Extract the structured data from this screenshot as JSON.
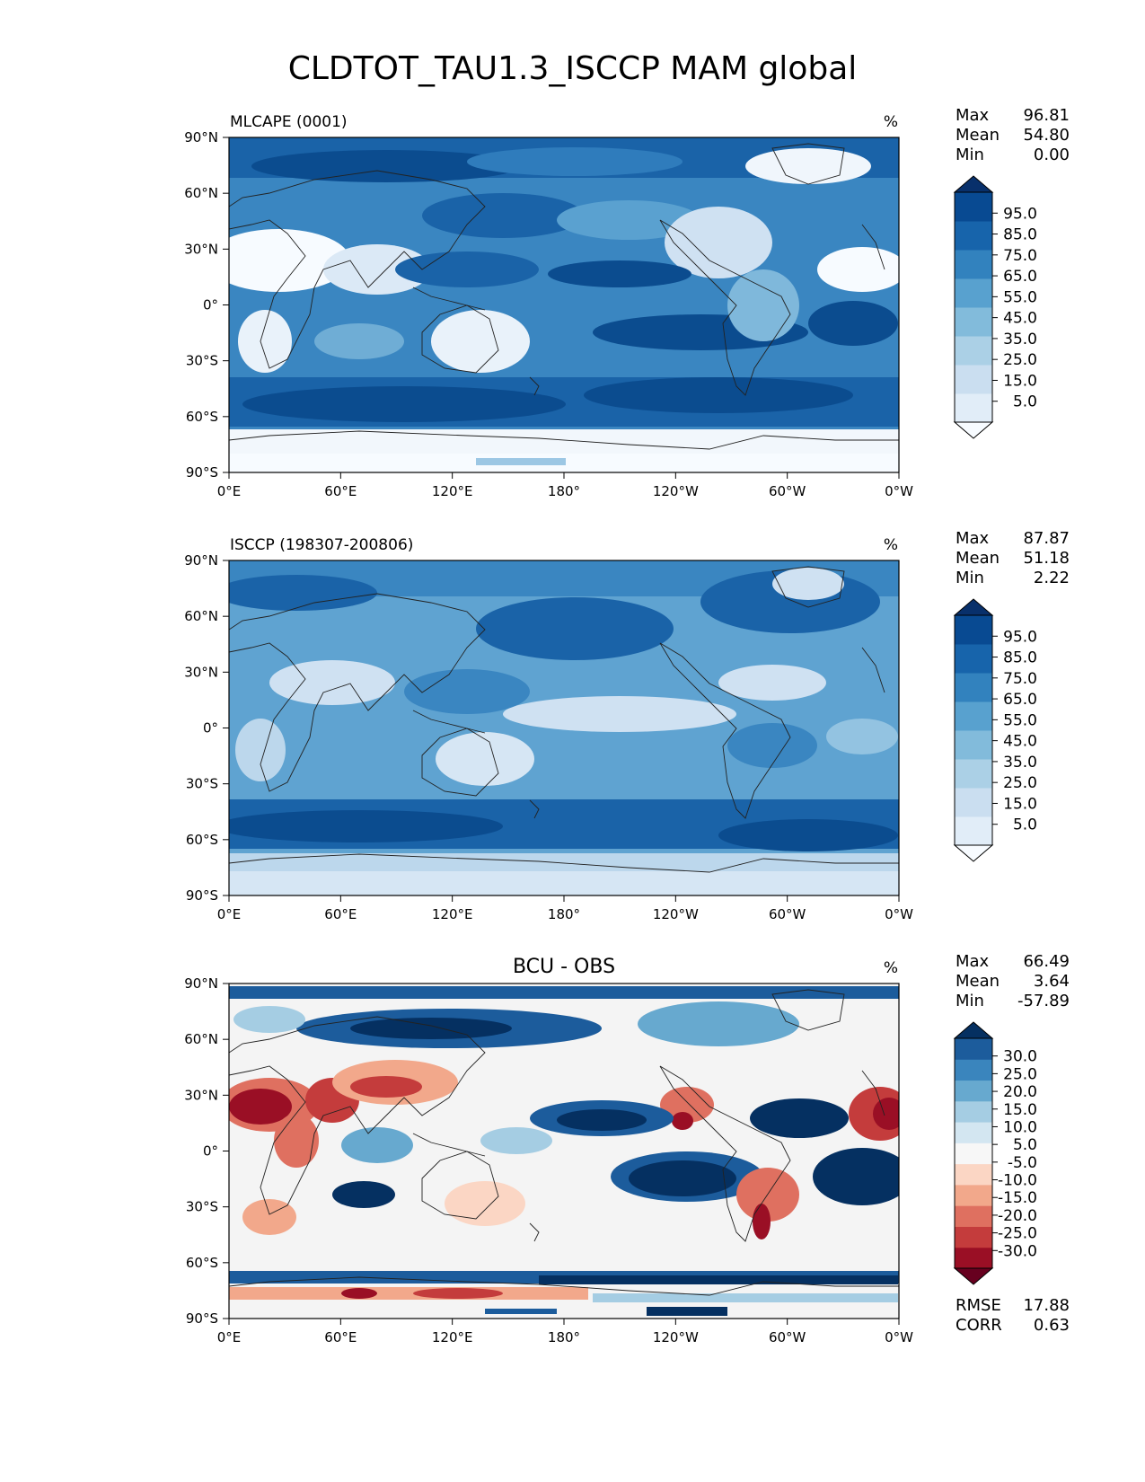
{
  "title": "CLDTOT_TAU1.3_ISCCP MAM global",
  "lat_ticks": [
    "90°N",
    "60°N",
    "30°N",
    "0°",
    "30°S",
    "60°S",
    "90°S"
  ],
  "lon_ticks": [
    "0°E",
    "60°E",
    "120°E",
    "180°",
    "120°W",
    "60°W",
    "0°W"
  ],
  "panels": [
    {
      "id": "model",
      "left_title": "MLCAPE (0001)",
      "center_title": "",
      "units": "%",
      "stats": {
        "labels": [
          "Max",
          "Mean",
          "Min"
        ],
        "values": [
          "96.81",
          "54.80",
          "0.00"
        ]
      },
      "colorbar": {
        "ticks": [
          "95.0",
          "85.0",
          "75.0",
          "65.0",
          "55.0",
          "45.0",
          "35.0",
          "25.0",
          "15.0",
          "5.0"
        ],
        "colors": [
          "#f7fbff",
          "#e1edf8",
          "#cadef0",
          "#abd0e6",
          "#82bbdb",
          "#58a1cf",
          "#3282be",
          "#1764ab",
          "#084a92",
          "#08306b"
        ]
      }
    },
    {
      "id": "obs",
      "left_title": "ISCCP (198307-200806)",
      "center_title": "",
      "units": "%",
      "stats": {
        "labels": [
          "Max",
          "Mean",
          "Min"
        ],
        "values": [
          "87.87",
          "51.18",
          "2.22"
        ]
      },
      "colorbar": {
        "ticks": [
          "95.0",
          "85.0",
          "75.0",
          "65.0",
          "55.0",
          "45.0",
          "35.0",
          "25.0",
          "15.0",
          "5.0"
        ],
        "colors": [
          "#f7fbff",
          "#e1edf8",
          "#cadef0",
          "#abd0e6",
          "#82bbdb",
          "#58a1cf",
          "#3282be",
          "#1764ab",
          "#084a92",
          "#08306b"
        ]
      }
    },
    {
      "id": "diff",
      "left_title": "",
      "center_title": "BCU - OBS",
      "units": "%",
      "stats": {
        "labels": [
          "Max",
          "Mean",
          "Min"
        ],
        "values": [
          "66.49",
          "3.64",
          "-57.89"
        ]
      },
      "colorbar": {
        "ticks": [
          "30.0",
          "25.0",
          "20.0",
          "15.0",
          "10.0",
          "5.0",
          "-5.0",
          "-10.0",
          "-15.0",
          "-20.0",
          "-25.0",
          "-30.0"
        ],
        "colors": [
          "#67001f",
          "#9a0f25",
          "#c43c3c",
          "#df7060",
          "#f2a88b",
          "#fbd6c4",
          "#f7f7f7",
          "#d3e6f1",
          "#a5cde3",
          "#67a9cf",
          "#3a85bd",
          "#1c5c9c",
          "#053061"
        ]
      },
      "footer": {
        "labels": [
          "RMSE",
          "CORR"
        ],
        "values": [
          "17.88",
          "0.63"
        ]
      }
    }
  ]
}
